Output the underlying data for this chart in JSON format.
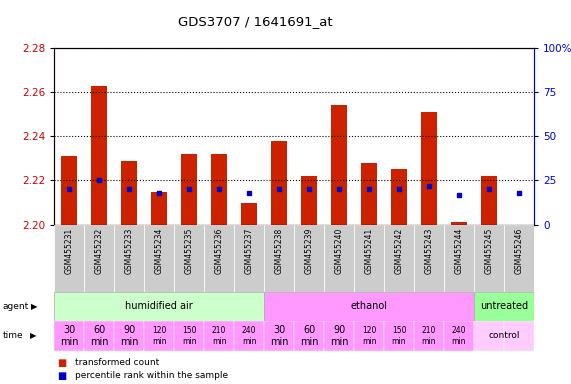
{
  "title": "GDS3707 / 1641691_at",
  "samples": [
    "GSM455231",
    "GSM455232",
    "GSM455233",
    "GSM455234",
    "GSM455235",
    "GSM455236",
    "GSM455237",
    "GSM455238",
    "GSM455239",
    "GSM455240",
    "GSM455241",
    "GSM455242",
    "GSM455243",
    "GSM455244",
    "GSM455245",
    "GSM455246"
  ],
  "bar_values": [
    2.231,
    2.263,
    2.229,
    2.215,
    2.232,
    2.232,
    2.21,
    2.238,
    2.222,
    2.254,
    2.228,
    2.225,
    2.251,
    2.201,
    2.222,
    2.2
  ],
  "blue_values": [
    20,
    25,
    20,
    18,
    20,
    20,
    18,
    20,
    20,
    20,
    20,
    20,
    22,
    17,
    20,
    18
  ],
  "ylim_left": [
    2.2,
    2.28
  ],
  "ylim_right": [
    0,
    100
  ],
  "yticks_left": [
    2.2,
    2.22,
    2.24,
    2.26,
    2.28
  ],
  "yticks_right": [
    0,
    25,
    50,
    75,
    100
  ],
  "ytick_labels_right": [
    "0",
    "25",
    "50",
    "75",
    "100%"
  ],
  "bar_color": "#cc2200",
  "blue_color": "#0000cc",
  "agent_groups": [
    {
      "label": "humidified air",
      "start": 0,
      "end": 7,
      "color": "#ccffcc"
    },
    {
      "label": "ethanol",
      "start": 7,
      "end": 14,
      "color": "#ff99ff"
    },
    {
      "label": "untreated",
      "start": 14,
      "end": 16,
      "color": "#99ff99"
    }
  ],
  "time_labels_data": [
    [
      0,
      "30\nmin",
      7
    ],
    [
      1,
      "60\nmin",
      7
    ],
    [
      2,
      "90\nmin",
      7
    ],
    [
      3,
      "120\nmin",
      5.5
    ],
    [
      4,
      "150\nmin",
      5.5
    ],
    [
      5,
      "210\nmin",
      5.5
    ],
    [
      6,
      "240\nmin",
      5.5
    ],
    [
      7,
      "30\nmin",
      7
    ],
    [
      8,
      "60\nmin",
      7
    ],
    [
      9,
      "90\nmin",
      7
    ],
    [
      10,
      "120\nmin",
      5.5
    ],
    [
      11,
      "150\nmin",
      5.5
    ],
    [
      12,
      "210\nmin",
      5.5
    ],
    [
      13,
      "240\nmin",
      5.5
    ]
  ],
  "time_bg_color": "#ff99ff",
  "control_bg_color": "#ffccff",
  "sample_box_color": "#cccccc",
  "grid_color": "#000000",
  "left_tick_color": "#cc0000",
  "right_tick_color": "#0000cc"
}
